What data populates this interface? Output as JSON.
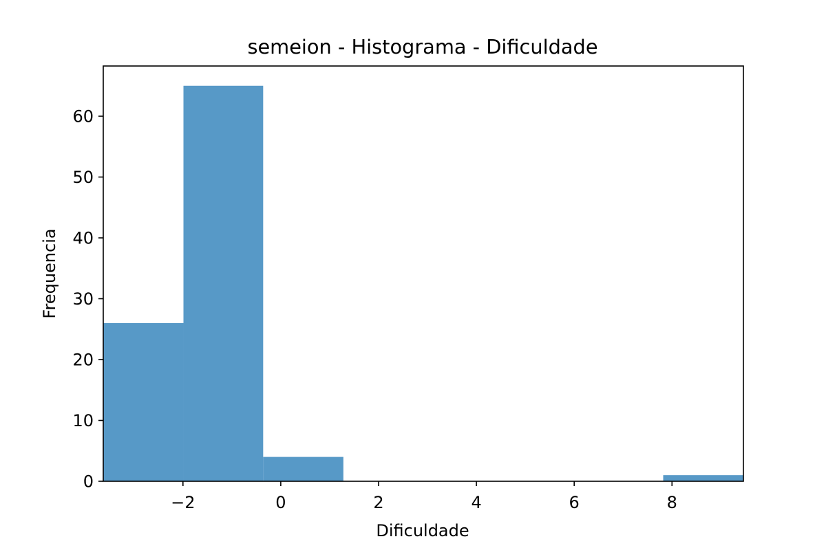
{
  "chart_data": {
    "type": "bar",
    "title": "semeion - Histograma - Dificuldade",
    "xlabel": "Dificuldade",
    "ylabel": "Frequencia",
    "bins": [
      {
        "start": -3.63,
        "end": -1.99,
        "count": 26
      },
      {
        "start": -1.99,
        "end": -0.36,
        "count": 65
      },
      {
        "start": -0.36,
        "end": 1.28,
        "count": 4
      },
      {
        "start": 1.28,
        "end": 2.92,
        "count": 0
      },
      {
        "start": 2.92,
        "end": 4.55,
        "count": 0
      },
      {
        "start": 4.55,
        "end": 6.19,
        "count": 0
      },
      {
        "start": 6.19,
        "end": 7.82,
        "count": 0
      },
      {
        "start": 7.82,
        "end": 9.46,
        "count": 1
      }
    ],
    "xlim": [
      -3.63,
      9.46
    ],
    "ylim": [
      0,
      68.25
    ],
    "xticks": [
      -2,
      0,
      2,
      4,
      6,
      8
    ],
    "xtick_labels": [
      "−2",
      "0",
      "2",
      "4",
      "6",
      "8"
    ],
    "yticks": [
      0,
      10,
      20,
      30,
      40,
      50,
      60
    ],
    "ytick_labels": [
      "0",
      "10",
      "20",
      "30",
      "40",
      "50",
      "60"
    ],
    "grid": false,
    "bar_color": "#5799c7"
  }
}
